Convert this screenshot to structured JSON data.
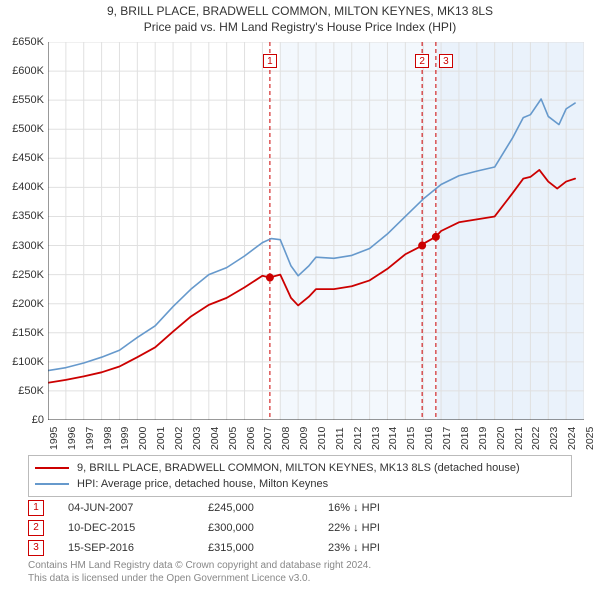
{
  "title_line1": "9, BRILL PLACE, BRADWELL COMMON, MILTON KEYNES, MK13 8LS",
  "title_line2": "Price paid vs. HM Land Registry's House Price Index (HPI)",
  "chart": {
    "type": "line",
    "background_color": "#ffffff",
    "grid_color": "#e0e0e0",
    "axis_color": "#333333",
    "x_min": 1995,
    "x_max": 2025,
    "y_min": 0,
    "y_max": 650000,
    "y_tick_step": 50000,
    "y_tick_prefix": "£",
    "y_tick_suffix": "K",
    "x_ticks": [
      1995,
      1996,
      1997,
      1998,
      1999,
      2000,
      2001,
      2002,
      2003,
      2004,
      2005,
      2006,
      2007,
      2008,
      2009,
      2010,
      2011,
      2012,
      2013,
      2014,
      2015,
      2016,
      2017,
      2018,
      2019,
      2020,
      2021,
      2022,
      2023,
      2024,
      2025
    ],
    "y_ticks": [
      0,
      50000,
      100000,
      150000,
      200000,
      250000,
      300000,
      350000,
      400000,
      450000,
      500000,
      550000,
      600000,
      650000
    ],
    "shaded_bands": [
      {
        "x_start": 2008.0,
        "x_end": 2016.7,
        "color": "#f3f8fd"
      },
      {
        "x_start": 2016.75,
        "x_end": 2025.0,
        "color": "#eaf2fb"
      }
    ],
    "series": [
      {
        "id": "property",
        "label": "9, BRILL PLACE, BRADWELL COMMON, MILTON KEYNES, MK13 8LS (detached house)",
        "color": "#cc0000",
        "line_width": 1.8,
        "points_xy": [
          [
            1995.0,
            64000
          ],
          [
            1996.0,
            69000
          ],
          [
            1997.0,
            75000
          ],
          [
            1998.0,
            82000
          ],
          [
            1999.0,
            92000
          ],
          [
            2000.0,
            108000
          ],
          [
            2001.0,
            125000
          ],
          [
            2002.0,
            152000
          ],
          [
            2003.0,
            178000
          ],
          [
            2004.0,
            198000
          ],
          [
            2005.0,
            210000
          ],
          [
            2006.0,
            228000
          ],
          [
            2007.0,
            248000
          ],
          [
            2007.4,
            245000
          ],
          [
            2008.0,
            250000
          ],
          [
            2008.6,
            210000
          ],
          [
            2009.0,
            197000
          ],
          [
            2009.6,
            212000
          ],
          [
            2010.0,
            225000
          ],
          [
            2011.0,
            225000
          ],
          [
            2012.0,
            230000
          ],
          [
            2013.0,
            240000
          ],
          [
            2014.0,
            260000
          ],
          [
            2015.0,
            285000
          ],
          [
            2015.95,
            300000
          ],
          [
            2016.0,
            303000
          ],
          [
            2016.7,
            315000
          ],
          [
            2017.0,
            325000
          ],
          [
            2018.0,
            340000
          ],
          [
            2019.0,
            345000
          ],
          [
            2020.0,
            350000
          ],
          [
            2021.0,
            390000
          ],
          [
            2021.6,
            415000
          ],
          [
            2022.0,
            418000
          ],
          [
            2022.5,
            430000
          ],
          [
            2023.0,
            410000
          ],
          [
            2023.5,
            398000
          ],
          [
            2024.0,
            410000
          ],
          [
            2024.5,
            415000
          ]
        ]
      },
      {
        "id": "hpi",
        "label": "HPI: Average price, detached house, Milton Keynes",
        "color": "#6699cc",
        "line_width": 1.6,
        "points_xy": [
          [
            1995.0,
            85000
          ],
          [
            1996.0,
            90000
          ],
          [
            1997.0,
            98000
          ],
          [
            1998.0,
            108000
          ],
          [
            1999.0,
            120000
          ],
          [
            2000.0,
            142000
          ],
          [
            2001.0,
            162000
          ],
          [
            2002.0,
            195000
          ],
          [
            2003.0,
            225000
          ],
          [
            2004.0,
            250000
          ],
          [
            2005.0,
            262000
          ],
          [
            2006.0,
            282000
          ],
          [
            2007.0,
            305000
          ],
          [
            2007.5,
            312000
          ],
          [
            2008.0,
            310000
          ],
          [
            2008.6,
            265000
          ],
          [
            2009.0,
            248000
          ],
          [
            2009.6,
            265000
          ],
          [
            2010.0,
            280000
          ],
          [
            2011.0,
            278000
          ],
          [
            2012.0,
            283000
          ],
          [
            2013.0,
            295000
          ],
          [
            2014.0,
            320000
          ],
          [
            2015.0,
            350000
          ],
          [
            2016.0,
            380000
          ],
          [
            2017.0,
            405000
          ],
          [
            2018.0,
            420000
          ],
          [
            2019.0,
            428000
          ],
          [
            2020.0,
            435000
          ],
          [
            2021.0,
            485000
          ],
          [
            2021.6,
            520000
          ],
          [
            2022.0,
            525000
          ],
          [
            2022.6,
            552000
          ],
          [
            2023.0,
            522000
          ],
          [
            2023.6,
            508000
          ],
          [
            2024.0,
            535000
          ],
          [
            2024.5,
            545000
          ]
        ]
      }
    ],
    "transaction_markers": [
      {
        "n": "1",
        "x": 2007.42,
        "y": 245000,
        "line_color": "#cc0000",
        "line_dash": "4,3",
        "box_border": "#cc0000"
      },
      {
        "n": "2",
        "x": 2015.94,
        "y": 300000,
        "line_color": "#cc0000",
        "line_dash": "4,3",
        "box_border": "#cc0000"
      },
      {
        "n": "3",
        "x": 2016.71,
        "y": 315000,
        "line_color": "#cc0000",
        "line_dash": "4,3",
        "box_border": "#cc0000"
      }
    ],
    "marker_dot_color": "#cc0000",
    "marker_dot_radius": 4,
    "tick_font_size": 11
  },
  "legend": {
    "border_color": "#bbbbbb",
    "items": [
      {
        "color": "#cc0000",
        "label": "9, BRILL PLACE, BRADWELL COMMON, MILTON KEYNES, MK13 8LS (detached house)"
      },
      {
        "color": "#6699cc",
        "label": "HPI: Average price, detached house, Milton Keynes"
      }
    ]
  },
  "transactions": {
    "box_border": "#cc0000",
    "rows": [
      {
        "n": "1",
        "date": "04-JUN-2007",
        "price": "£245,000",
        "delta": "16% ↓ HPI"
      },
      {
        "n": "2",
        "date": "10-DEC-2015",
        "price": "£300,000",
        "delta": "22% ↓ HPI"
      },
      {
        "n": "3",
        "date": "15-SEP-2016",
        "price": "£315,000",
        "delta": "23% ↓ HPI"
      }
    ]
  },
  "footer": {
    "line1": "Contains HM Land Registry data © Crown copyright and database right 2024.",
    "line2": "This data is licensed under the Open Government Licence v3.0.",
    "color": "#888888"
  }
}
